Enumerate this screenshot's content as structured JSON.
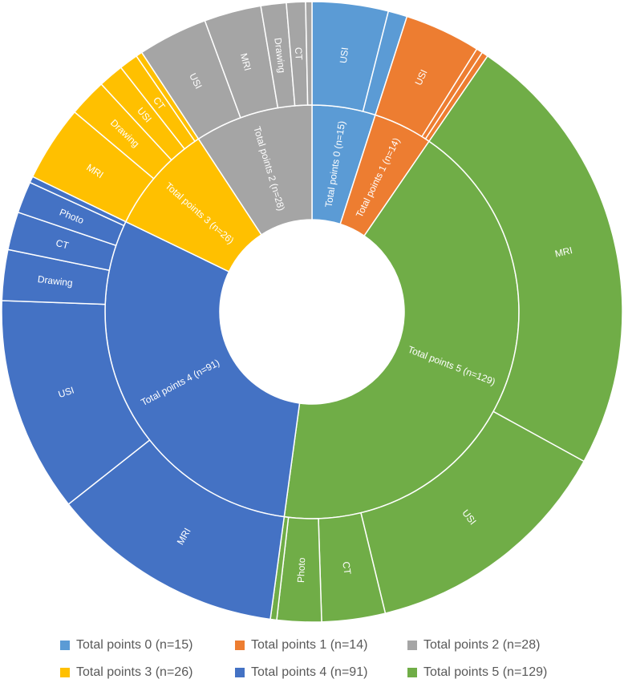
{
  "chart_data": {
    "type": "sunburst",
    "groups": [
      {
        "name": "Total points 0 (n=15)",
        "inner_label": "Total points 0 (n=15)",
        "color": "#5B9BD5",
        "value": 15,
        "children": [
          {
            "label": "USI",
            "value": 12
          },
          {
            "label": "",
            "value": 3
          }
        ]
      },
      {
        "name": "Total points 1 (n=14)",
        "inner_label": "Total points 1  (n=14)",
        "color": "#ED7D31",
        "value": 14,
        "children": [
          {
            "label": "USI",
            "value": 12
          },
          {
            "label": "",
            "value": 1
          },
          {
            "label": "",
            "value": 1
          }
        ]
      },
      {
        "name": "Total points 5 (n=129)",
        "inner_label": "Total points 5 (n=129)",
        "color": "#70AD47",
        "value": 129,
        "children": [
          {
            "label": "MRI",
            "value": 71
          },
          {
            "label": "USI",
            "value": 40
          },
          {
            "label": "CT",
            "value": 10
          },
          {
            "label": "Photo",
            "value": 7
          },
          {
            "label": "",
            "value": 1
          }
        ]
      },
      {
        "name": "Total points 4 (n=91)",
        "inner_label": "Total points 4 (n=91)",
        "color": "#4472C4",
        "value": 91,
        "children": [
          {
            "label": "MRI",
            "value": 37
          },
          {
            "label": "USI",
            "value": 34
          },
          {
            "label": "Drawing",
            "value": 8
          },
          {
            "label": "CT",
            "value": 6
          },
          {
            "label": "Photo",
            "value": 5
          },
          {
            "label": "",
            "value": 1
          }
        ]
      },
      {
        "name": "Total points 3 (n=26)",
        "inner_label": "Total points 3 (n=26)",
        "color": "#FFC000",
        "value": 26,
        "children": [
          {
            "label": "MRI",
            "value": 12
          },
          {
            "label": "Drawing",
            "value": 6
          },
          {
            "label": "USI",
            "value": 4
          },
          {
            "label": "CT",
            "value": 3
          },
          {
            "label": "",
            "value": 1
          }
        ]
      },
      {
        "name": "Total points 2 (n=28)",
        "inner_label": "Total points 2 (n=28)",
        "color": "#A5A5A5",
        "value": 28,
        "children": [
          {
            "label": "USI",
            "value": 11
          },
          {
            "label": "MRI",
            "value": 9
          },
          {
            "label": "Drawing",
            "value": 4
          },
          {
            "label": "CT",
            "value": 3
          },
          {
            "label": "",
            "value": 1
          }
        ]
      }
    ],
    "legend": {
      "position": "bottom",
      "entries": [
        "Total points 0 (n=15)",
        "Total points 1 (n=14)",
        "Total points 2 (n=28)",
        "Total points 3 (n=26)",
        "Total points 4 (n=91)",
        "Total points 5 (n=129)"
      ]
    }
  },
  "legend_colors": {
    "Total points 0 (n=15)": "#5B9BD5",
    "Total points 1 (n=14)": "#ED7D31",
    "Total points 2 (n=28)": "#A5A5A5",
    "Total points 3 (n=26)": "#FFC000",
    "Total points 4 (n=91)": "#4472C4",
    "Total points 5 (n=129)": "#70AD47"
  }
}
